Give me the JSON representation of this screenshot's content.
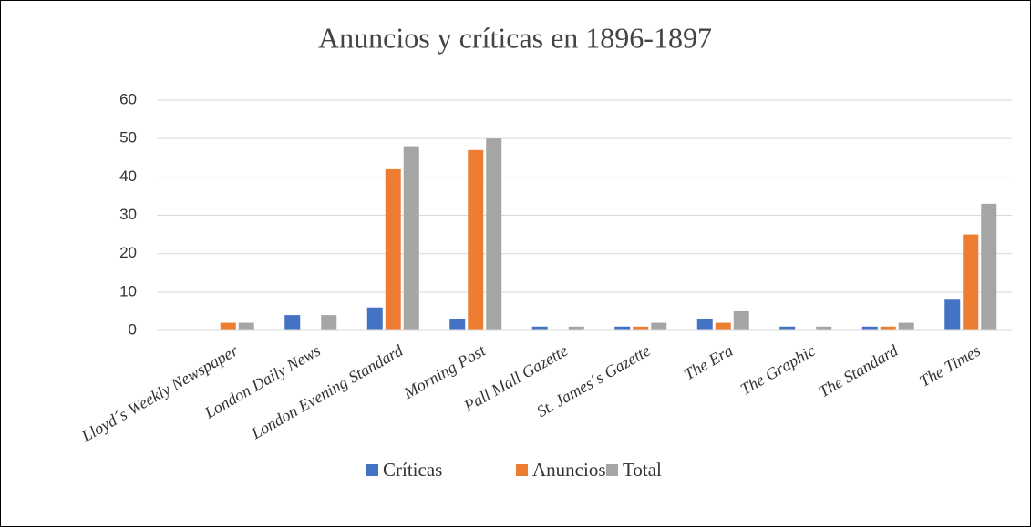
{
  "chart_data": {
    "type": "bar",
    "title": "Anuncios y críticas en 1896-1897",
    "categories": [
      "Lloyd´s Weekly Newspaper",
      "London Daily News",
      "London Evening Standard",
      "Morning Post",
      "Pall Mall Gazette",
      "St. James´s Gazette",
      "The Era",
      "The Graphic",
      "The Standard",
      "The Times"
    ],
    "series": [
      {
        "name": "Críticas",
        "color": "#4472c4",
        "values": [
          0,
          4,
          6,
          3,
          1,
          1,
          3,
          1,
          1,
          8
        ]
      },
      {
        "name": "Anuncios",
        "color": "#ed7d31",
        "values": [
          2,
          0,
          42,
          47,
          0,
          1,
          2,
          0,
          1,
          25
        ]
      },
      {
        "name": "Total",
        "color": "#a5a5a5",
        "values": [
          2,
          4,
          48,
          50,
          1,
          2,
          5,
          1,
          2,
          33
        ]
      }
    ],
    "ylim": [
      0,
      60
    ],
    "yticks": [
      0,
      10,
      20,
      30,
      40,
      50,
      60
    ],
    "grid": true,
    "legend": "bottom"
  }
}
